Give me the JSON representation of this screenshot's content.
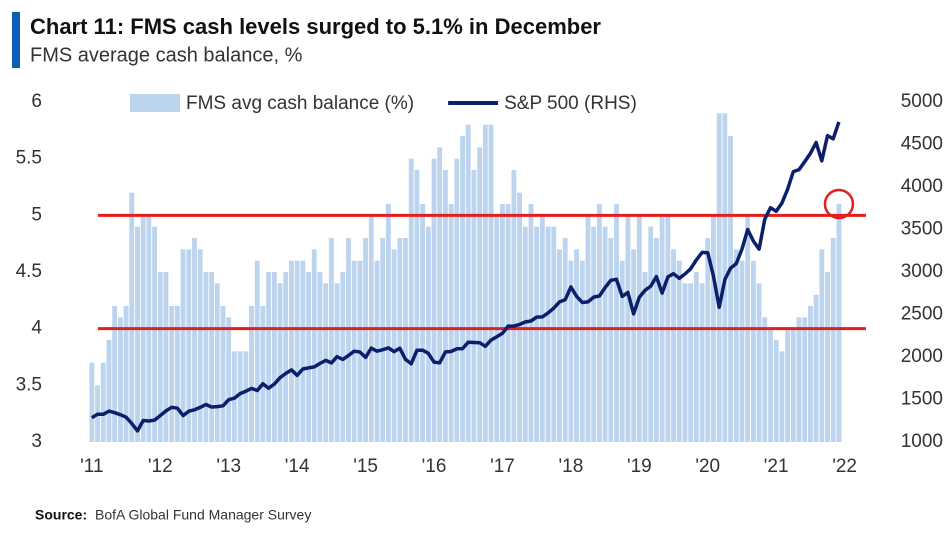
{
  "chart_data": {
    "type": "bar-line",
    "title": "Chart 11: FMS cash levels surged to 5.1% in December",
    "subtitle": "FMS average cash balance, %",
    "source_label": "Source:",
    "source": "BofA Global Fund Manager Survey",
    "x": [
      2011,
      2011.083,
      2011.167,
      2011.25,
      2011.333,
      2011.417,
      2011.5,
      2011.583,
      2011.667,
      2011.75,
      2011.833,
      2011.917,
      2012,
      2012.083,
      2012.167,
      2012.25,
      2012.333,
      2012.417,
      2012.5,
      2012.583,
      2012.667,
      2012.75,
      2012.833,
      2012.917,
      2013,
      2013.083,
      2013.167,
      2013.25,
      2013.333,
      2013.417,
      2013.5,
      2013.583,
      2013.667,
      2013.75,
      2013.833,
      2013.917,
      2014,
      2014.083,
      2014.167,
      2014.25,
      2014.333,
      2014.417,
      2014.5,
      2014.583,
      2014.667,
      2014.75,
      2014.833,
      2014.917,
      2015,
      2015.083,
      2015.167,
      2015.25,
      2015.333,
      2015.417,
      2015.5,
      2015.583,
      2015.667,
      2015.75,
      2015.833,
      2015.917,
      2016,
      2016.083,
      2016.167,
      2016.25,
      2016.333,
      2016.417,
      2016.5,
      2016.583,
      2016.667,
      2016.75,
      2016.833,
      2016.917,
      2017,
      2017.083,
      2017.167,
      2017.25,
      2017.333,
      2017.417,
      2017.5,
      2017.583,
      2017.667,
      2017.75,
      2017.833,
      2017.917,
      2018,
      2018.083,
      2018.167,
      2018.25,
      2018.333,
      2018.417,
      2018.5,
      2018.583,
      2018.667,
      2018.75,
      2018.833,
      2018.917,
      2019,
      2019.083,
      2019.167,
      2019.25,
      2019.333,
      2019.417,
      2019.5,
      2019.583,
      2019.667,
      2019.75,
      2019.833,
      2019.917,
      2020,
      2020.083,
      2020.167,
      2020.25,
      2020.333,
      2020.417,
      2020.5,
      2020.583,
      2020.667,
      2020.75,
      2020.833,
      2020.917,
      2021,
      2021.083,
      2021.167,
      2021.25,
      2021.333,
      2021.417,
      2021.5,
      2021.583,
      2021.667,
      2021.75,
      2021.833,
      2021.917
    ],
    "series": [
      {
        "name": "FMS avg cash balance (%)",
        "type": "bar",
        "color": "#bdd4ee",
        "values": [
          3.7,
          3.5,
          3.7,
          3.9,
          4.2,
          4.1,
          4.2,
          5.2,
          4.9,
          5.0,
          5.0,
          4.9,
          4.5,
          4.5,
          4.2,
          4.2,
          4.7,
          4.7,
          4.8,
          4.7,
          4.5,
          4.5,
          4.4,
          4.2,
          4.1,
          3.8,
          3.8,
          3.8,
          4.2,
          4.6,
          4.2,
          4.5,
          4.5,
          4.4,
          4.5,
          4.6,
          4.6,
          4.6,
          4.5,
          4.7,
          4.5,
          4.4,
          4.8,
          4.4,
          4.5,
          4.8,
          4.6,
          4.6,
          4.8,
          5.0,
          4.6,
          4.8,
          5.1,
          4.7,
          4.8,
          4.8,
          5.5,
          5.4,
          5.1,
          4.9,
          5.5,
          5.6,
          5.4,
          5.1,
          5.5,
          5.7,
          5.8,
          5.4,
          5.6,
          5.8,
          5.8,
          5.0,
          5.1,
          5.1,
          5.4,
          5.2,
          4.9,
          5.1,
          4.9,
          5.0,
          4.9,
          4.9,
          4.7,
          4.8,
          4.6,
          4.7,
          4.6,
          5.0,
          4.9,
          5.1,
          4.9,
          4.8,
          5.1,
          4.6,
          5.0,
          4.7,
          5.0,
          4.5,
          4.9,
          4.8,
          5.0,
          5.0,
          4.7,
          4.6,
          4.4,
          4.4,
          4.5,
          4.4,
          4.8,
          5.0,
          5.9,
          5.9,
          5.7,
          4.7,
          4.6,
          5.0,
          4.6,
          4.4,
          4.1,
          4.0,
          3.9,
          3.8,
          4.0,
          4.0,
          4.1,
          4.1,
          4.2,
          4.3,
          4.7,
          4.5,
          4.8,
          5.1
        ]
      },
      {
        "name": "S&P 500 (RHS)",
        "type": "line",
        "axis": "y2",
        "color": "#0c1f6b",
        "values": [
          1286,
          1327,
          1326,
          1364,
          1345,
          1321,
          1292,
          1219,
          1131,
          1253,
          1247,
          1258,
          1312,
          1366,
          1408,
          1398,
          1310,
          1362,
          1379,
          1407,
          1441,
          1412,
          1416,
          1426,
          1498,
          1515,
          1569,
          1598,
          1631,
          1606,
          1686,
          1633,
          1682,
          1757,
          1806,
          1848,
          1783,
          1859,
          1872,
          1884,
          1924,
          1960,
          1931,
          2003,
          1972,
          2018,
          2068,
          2059,
          1995,
          2105,
          2068,
          2086,
          2107,
          2063,
          2104,
          1972,
          1920,
          2079,
          2080,
          2044,
          1940,
          1932,
          2060,
          2065,
          2097,
          2099,
          2174,
          2171,
          2168,
          2126,
          2199,
          2239,
          2279,
          2364,
          2363,
          2384,
          2412,
          2423,
          2470,
          2472,
          2519,
          2575,
          2648,
          2674,
          2824,
          2714,
          2641,
          2648,
          2705,
          2718,
          2816,
          2902,
          2914,
          2712,
          2760,
          2507,
          2704,
          2784,
          2834,
          2946,
          2752,
          2942,
          2980,
          2926,
          2977,
          3038,
          3141,
          3231,
          3226,
          2954,
          2585,
          2912,
          3044,
          3100,
          3271,
          3500,
          3363,
          3270,
          3622,
          3756,
          3714,
          3811,
          3973,
          4181,
          4204,
          4298,
          4395,
          4523,
          4308,
          4605,
          4567,
          4766
        ]
      }
    ],
    "reference_lines": [
      {
        "value": 5,
        "color": "#e41e1e"
      },
      {
        "value": 4,
        "color": "#e41e1e"
      }
    ],
    "xlim": [
      2010.9,
      2022.4
    ],
    "xticks": [
      {
        "value": 2011,
        "label": "'11"
      },
      {
        "value": 2012,
        "label": "'12"
      },
      {
        "value": 2013,
        "label": "'13"
      },
      {
        "value": 2014,
        "label": "'14"
      },
      {
        "value": 2015,
        "label": "'15"
      },
      {
        "value": 2016,
        "label": "'16"
      },
      {
        "value": 2017,
        "label": "'17"
      },
      {
        "value": 2018,
        "label": "'18"
      },
      {
        "value": 2019,
        "label": "'19"
      },
      {
        "value": 2020,
        "label": "'20"
      },
      {
        "value": 2021,
        "label": "'21"
      },
      {
        "value": 2022,
        "label": "'22"
      }
    ],
    "ylim": [
      3,
      6
    ],
    "yticks": [
      3,
      3.5,
      4,
      4.5,
      5,
      5.5,
      6
    ],
    "y2lim": [
      1000,
      5000
    ],
    "y2ticks": [
      1000,
      1500,
      2000,
      2500,
      3000,
      3500,
      4000,
      4500,
      5000
    ],
    "legend": "top"
  }
}
